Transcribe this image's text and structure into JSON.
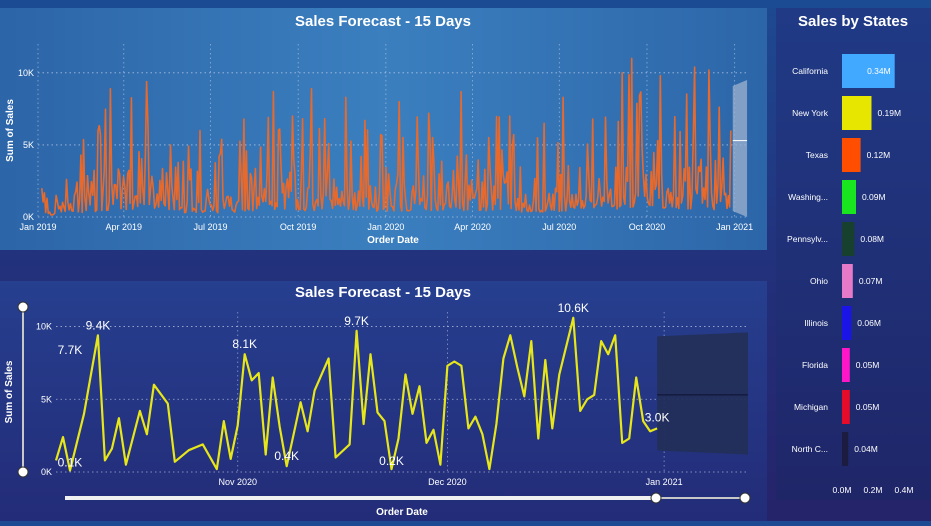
{
  "top_chart": {
    "title": "Sales Forecast - 15 Days",
    "ylabel": "Sum of Sales",
    "xlabel": "Order Date",
    "y_ticks": [
      "10K",
      "5K",
      "0K"
    ],
    "x_ticks": [
      "Jan 2019",
      "Apr 2019",
      "Jul 2019",
      "Oct 2019",
      "Jan 2020",
      "Apr 2020",
      "Jul 2020",
      "Oct 2020",
      "Jan 2021"
    ]
  },
  "bottom_chart": {
    "title": "Sales Forecast - 15 Days",
    "ylabel": "Sum of Sales",
    "xlabel": "Order Date",
    "y_ticks": [
      "10K",
      "5K",
      "0K"
    ],
    "x_ticks": [
      "Nov 2020",
      "Dec 2020",
      "Jan 2021"
    ]
  },
  "right_chart": {
    "title": "Sales by States",
    "x_ticks": [
      "0.0M",
      "0.2M",
      "0.4M"
    ]
  },
  "colors": {
    "top_line": "#e8692c",
    "bottom_line": "#e6e619",
    "forecast_band_top": "#9fb3cf",
    "forecast_band_bottom": "#232f5a"
  },
  "chart_data": [
    {
      "type": "line",
      "title": "Sales Forecast - 15 Days",
      "xlabel": "Order Date",
      "ylabel": "Sum of Sales",
      "ylim": [
        0,
        12000
      ],
      "x_range": [
        "2019-01-01",
        "2021-01-15"
      ],
      "forecast": {
        "start": "2020-12-30",
        "end": "2021-01-14",
        "value": 5300,
        "upper": 9500,
        "lower": 0
      },
      "series": [
        {
          "values": [
            {
              "x": "2019-01-05",
              "y": 2000
            },
            {
              "x": "2019-01-20",
              "y": 1500
            },
            {
              "x": "2019-02-15",
              "y": 4300
            },
            {
              "x": "2019-03-05",
              "y": 6000
            },
            {
              "x": "2019-03-18",
              "y": 8900
            },
            {
              "x": "2019-04-05",
              "y": 3000
            },
            {
              "x": "2019-04-25",
              "y": 9400
            },
            {
              "x": "2019-05-20",
              "y": 5000
            },
            {
              "x": "2019-06-20",
              "y": 6000
            },
            {
              "x": "2019-07-10",
              "y": 4200
            },
            {
              "x": "2019-08-05",
              "y": 6800
            },
            {
              "x": "2019-09-05",
              "y": 8700
            },
            {
              "x": "2019-09-25",
              "y": 7000
            },
            {
              "x": "2019-10-15",
              "y": 8900
            },
            {
              "x": "2019-11-20",
              "y": 8300
            },
            {
              "x": "2019-12-10",
              "y": 6700
            },
            {
              "x": "2020-01-15",
              "y": 8000
            },
            {
              "x": "2020-02-15",
              "y": 7200
            },
            {
              "x": "2020-03-20",
              "y": 8700
            },
            {
              "x": "2020-05-10",
              "y": 7000
            },
            {
              "x": "2020-06-15",
              "y": 6500
            },
            {
              "x": "2020-07-05",
              "y": 8300
            },
            {
              "x": "2020-08-05",
              "y": 6800
            },
            {
              "x": "2020-09-05",
              "y": 10000
            },
            {
              "x": "2020-09-15",
              "y": 11000
            },
            {
              "x": "2020-10-15",
              "y": 9800
            },
            {
              "x": "2020-11-20",
              "y": 10400
            },
            {
              "x": "2020-12-05",
              "y": 10200
            },
            {
              "x": "2020-12-28",
              "y": 6000
            }
          ]
        }
      ]
    },
    {
      "type": "line",
      "title": "Sales Forecast - 15 Days",
      "xlabel": "Order Date",
      "ylabel": "Sum of Sales",
      "ylim": [
        0,
        11000
      ],
      "x_range": [
        "2020-10-06",
        "2021-01-13"
      ],
      "forecast": {
        "start": "2020-12-31",
        "end": "2021-01-13",
        "value": 5300,
        "upper": 9600,
        "lower": 1200
      },
      "data_labels": [
        "7.7K",
        "9.4K",
        "0.1K",
        "8.1K",
        "0.4K",
        "9.7K",
        "0.2K",
        "10.6K",
        "3.0K"
      ],
      "series": [
        {
          "values": [
            {
              "x": "2020-10-06",
              "y": 800
            },
            {
              "x": "2020-10-07",
              "y": 2400
            },
            {
              "x": "2020-10-08",
              "y": 100
            },
            {
              "x": "2020-10-10",
              "y": 4000
            },
            {
              "x": "2020-10-12",
              "y": 9400
            },
            {
              "x": "2020-10-13",
              "y": 800
            },
            {
              "x": "2020-10-14",
              "y": 1600
            },
            {
              "x": "2020-10-15",
              "y": 3700
            },
            {
              "x": "2020-10-16",
              "y": 500
            },
            {
              "x": "2020-10-18",
              "y": 4200
            },
            {
              "x": "2020-10-19",
              "y": 2600
            },
            {
              "x": "2020-10-20",
              "y": 6000
            },
            {
              "x": "2020-10-22",
              "y": 4700
            },
            {
              "x": "2020-10-23",
              "y": 700
            },
            {
              "x": "2020-10-25",
              "y": 1500
            },
            {
              "x": "2020-10-27",
              "y": 1900
            },
            {
              "x": "2020-10-29",
              "y": 200
            },
            {
              "x": "2020-10-30",
              "y": 3500
            },
            {
              "x": "2020-10-31",
              "y": 900
            },
            {
              "x": "2020-11-01",
              "y": 3200
            },
            {
              "x": "2020-11-02",
              "y": 8100
            },
            {
              "x": "2020-11-03",
              "y": 6300
            },
            {
              "x": "2020-11-04",
              "y": 6800
            },
            {
              "x": "2020-11-05",
              "y": 1200
            },
            {
              "x": "2020-11-06",
              "y": 6500
            },
            {
              "x": "2020-11-07",
              "y": 3100
            },
            {
              "x": "2020-11-08",
              "y": 400
            },
            {
              "x": "2020-11-10",
              "y": 4800
            },
            {
              "x": "2020-11-11",
              "y": 2800
            },
            {
              "x": "2020-11-12",
              "y": 5600
            },
            {
              "x": "2020-11-14",
              "y": 7800
            },
            {
              "x": "2020-11-15",
              "y": 1000
            },
            {
              "x": "2020-11-17",
              "y": 1900
            },
            {
              "x": "2020-11-18",
              "y": 9700
            },
            {
              "x": "2020-11-19",
              "y": 3300
            },
            {
              "x": "2020-11-20",
              "y": 8100
            },
            {
              "x": "2020-11-21",
              "y": 4100
            },
            {
              "x": "2020-11-22",
              "y": 3500
            },
            {
              "x": "2020-11-23",
              "y": 200
            },
            {
              "x": "2020-11-24",
              "y": 2300
            },
            {
              "x": "2020-11-25",
              "y": 6700
            },
            {
              "x": "2020-11-26",
              "y": 4000
            },
            {
              "x": "2020-11-27",
              "y": 5900
            },
            {
              "x": "2020-11-28",
              "y": 2000
            },
            {
              "x": "2020-11-29",
              "y": 2900
            },
            {
              "x": "2020-11-30",
              "y": 500
            },
            {
              "x": "2020-12-01",
              "y": 7300
            },
            {
              "x": "2020-12-02",
              "y": 7600
            },
            {
              "x": "2020-12-03",
              "y": 7300
            },
            {
              "x": "2020-12-04",
              "y": 3000
            },
            {
              "x": "2020-12-05",
              "y": 3800
            },
            {
              "x": "2020-12-06",
              "y": 2600
            },
            {
              "x": "2020-12-07",
              "y": 200
            },
            {
              "x": "2020-12-08",
              "y": 3300
            },
            {
              "x": "2020-12-09",
              "y": 7800
            },
            {
              "x": "2020-12-10",
              "y": 9400
            },
            {
              "x": "2020-12-11",
              "y": 7200
            },
            {
              "x": "2020-12-12",
              "y": 5200
            },
            {
              "x": "2020-12-13",
              "y": 9000
            },
            {
              "x": "2020-12-14",
              "y": 2300
            },
            {
              "x": "2020-12-15",
              "y": 7700
            },
            {
              "x": "2020-12-16",
              "y": 3000
            },
            {
              "x": "2020-12-17",
              "y": 6700
            },
            {
              "x": "2020-12-19",
              "y": 10600
            },
            {
              "x": "2020-12-20",
              "y": 4200
            },
            {
              "x": "2020-12-21",
              "y": 5000
            },
            {
              "x": "2020-12-22",
              "y": 5300
            },
            {
              "x": "2020-12-23",
              "y": 9000
            },
            {
              "x": "2020-12-24",
              "y": 8100
            },
            {
              "x": "2020-12-25",
              "y": 9400
            },
            {
              "x": "2020-12-26",
              "y": 2000
            },
            {
              "x": "2020-12-27",
              "y": 2300
            },
            {
              "x": "2020-12-28",
              "y": 6500
            },
            {
              "x": "2020-12-29",
              "y": 3500
            },
            {
              "x": "2020-12-30",
              "y": 2800
            },
            {
              "x": "2020-12-31",
              "y": 3000
            }
          ]
        }
      ]
    },
    {
      "type": "bar",
      "orientation": "horizontal",
      "title": "Sales by States",
      "categories": [
        "California",
        "New York",
        "Texas",
        "Washing...",
        "Pennsylv...",
        "Ohio",
        "Illinois",
        "Florida",
        "Michigan",
        "North C..."
      ],
      "values": [
        0.34,
        0.19,
        0.12,
        0.09,
        0.08,
        0.07,
        0.06,
        0.05,
        0.05,
        0.04
      ],
      "value_labels": [
        "0.34M",
        "0.19M",
        "0.12M",
        "0.09M",
        "0.08M",
        "0.07M",
        "0.06M",
        "0.05M",
        "0.05M",
        "0.04M"
      ],
      "colors": [
        "#41a9ff",
        "#e6e600",
        "#ff4e00",
        "#19e61f",
        "#17402f",
        "#e67ac8",
        "#1b14e6",
        "#ff16c8",
        "#e60b29",
        "#1c1c40"
      ],
      "xlim": [
        0,
        0.4
      ],
      "unit": "M"
    }
  ]
}
